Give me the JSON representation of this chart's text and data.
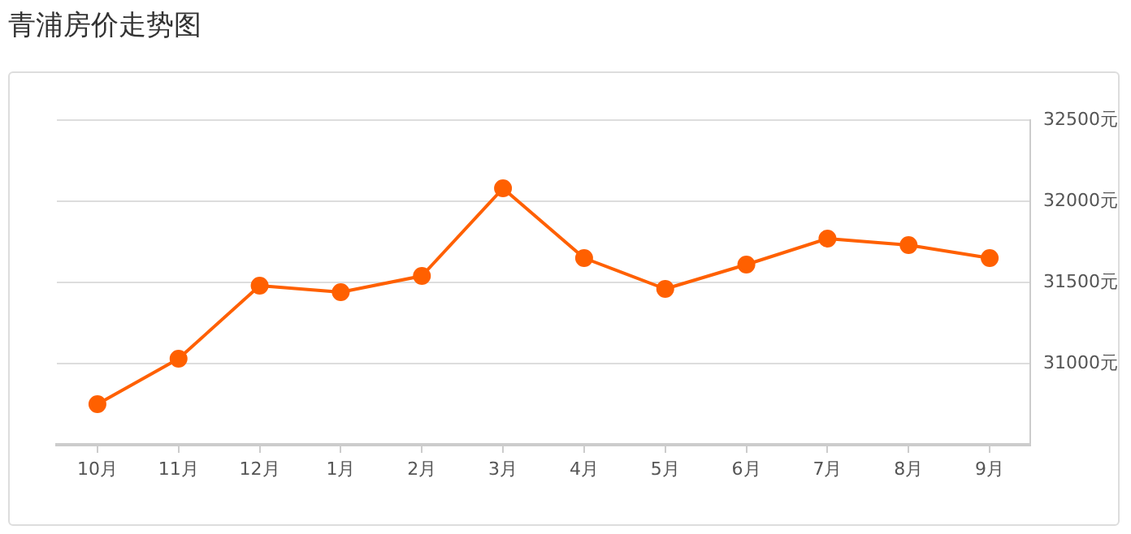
{
  "chart_data": {
    "type": "line",
    "title": "青浦房价走势图",
    "categories": [
      "10月",
      "11月",
      "12月",
      "1月",
      "2月",
      "3月",
      "4月",
      "5月",
      "6月",
      "7月",
      "8月",
      "9月"
    ],
    "series": [
      {
        "color": "#ff6000",
        "values": [
          30750,
          31030,
          31480,
          31440,
          31540,
          32080,
          31650,
          31460,
          31610,
          31770,
          31730,
          31650
        ]
      }
    ],
    "ylim": [
      30500,
      32500
    ],
    "yticks": [
      {
        "value": 30500,
        "label": null
      },
      {
        "value": 31000,
        "label": "31000元"
      },
      {
        "value": 31500,
        "label": "31500元"
      },
      {
        "value": 32000,
        "label": "32000元"
      },
      {
        "value": 32500,
        "label": "32500元"
      }
    ],
    "grid": "y",
    "legend": false,
    "marker": "circle",
    "line_style": "solid"
  }
}
